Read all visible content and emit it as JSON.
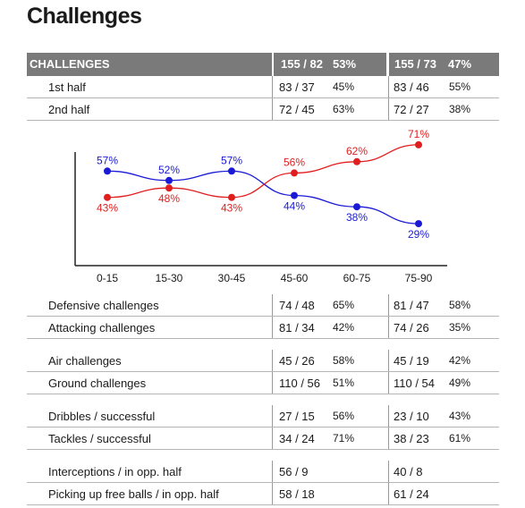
{
  "title": "Challenges",
  "header": {
    "label": "CHALLENGES",
    "t1_value": "155 / 82",
    "t1_pct": "53%",
    "t2_value": "155 / 73",
    "t2_pct": "47%"
  },
  "halves": [
    {
      "label": "1st half",
      "t1_value": "83 / 37",
      "t1_pct": "45%",
      "t2_value": "83 / 46",
      "t2_pct": "55%"
    },
    {
      "label": "2nd half",
      "t1_value": "72 / 45",
      "t1_pct": "63%",
      "t2_value": "72 / 27",
      "t2_pct": "38%"
    }
  ],
  "chart_data": {
    "type": "line",
    "title": "",
    "xlabel": "",
    "ylabel": "",
    "categories": [
      "0-15",
      "15-30",
      "30-45",
      "45-60",
      "60-75",
      "75-90"
    ],
    "ylim": [
      20,
      80
    ],
    "grid": false,
    "series": [
      {
        "color": "#1a1ad6",
        "values": [
          57,
          52,
          57,
          44,
          38,
          29
        ],
        "labels": [
          "57%",
          "52%",
          "57%",
          "44%",
          "38%",
          "29%"
        ]
      },
      {
        "color": "#e01e1e",
        "values": [
          43,
          48,
          43,
          56,
          62,
          71
        ],
        "labels": [
          "43%",
          "48%",
          "43%",
          "56%",
          "62%",
          "71%"
        ]
      }
    ]
  },
  "stats": [
    {
      "label": "Defensive challenges",
      "t1_value": "74 / 48",
      "t1_pct": "65%",
      "t2_value": "81 / 47",
      "t2_pct": "58%"
    },
    {
      "label": "Attacking challenges",
      "t1_value": "81 / 34",
      "t1_pct": "42%",
      "t2_value": "74 / 26",
      "t2_pct": "35%"
    },
    {
      "label": "Air challenges",
      "t1_value": "45 / 26",
      "t1_pct": "58%",
      "t2_value": "45 / 19",
      "t2_pct": "42%"
    },
    {
      "label": "Ground challenges",
      "t1_value": "110 / 56",
      "t1_pct": "51%",
      "t2_value": "110 / 54",
      "t2_pct": "49%"
    },
    {
      "label": "Dribbles / successful",
      "t1_value": "27 / 15",
      "t1_pct": "56%",
      "t2_value": "23 / 10",
      "t2_pct": "43%"
    },
    {
      "label": "Tackles / successful",
      "t1_value": "34 / 24",
      "t1_pct": "71%",
      "t2_value": "38 / 23",
      "t2_pct": "61%"
    },
    {
      "label": "Interceptions / in opp. half",
      "t1_value": "56 / 9",
      "t1_pct": "",
      "t2_value": "40 / 8",
      "t2_pct": ""
    },
    {
      "label": "Picking up free balls / in opp. half",
      "t1_value": "58 / 18",
      "t1_pct": "",
      "t2_value": "61 / 24",
      "t2_pct": ""
    }
  ]
}
